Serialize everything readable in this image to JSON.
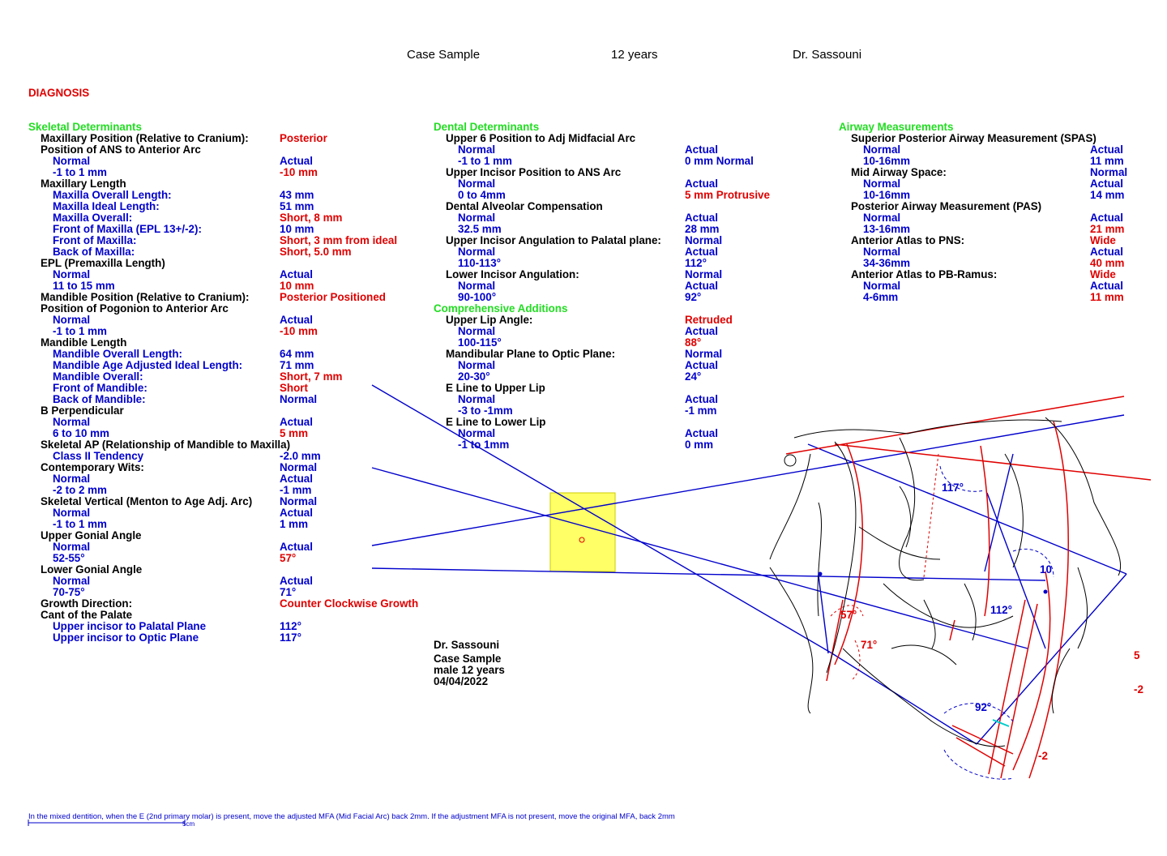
{
  "header": {
    "case": "Case Sample",
    "age": "12 years",
    "doctor": "Dr. Sassouni"
  },
  "diagnosis_label": "DIAGNOSIS",
  "sections": {
    "skeletal": "Skeletal Determinants",
    "dental": "Dental Determinants",
    "comprehensive": "Comprehensive Additions",
    "airway": "Airway Measurements"
  },
  "skeletal_lines": [
    {
      "c": "black",
      "i": 1,
      "label": "Maxillary Position (Relative to Cranium):",
      "v": "Posterior",
      "vc": "red"
    },
    {
      "c": "black",
      "i": 1,
      "label": "Position of ANS to Anterior Arc",
      "v": "",
      "vc": "blue"
    },
    {
      "c": "blue",
      "i": 2,
      "label": "Normal",
      "v": "Actual",
      "vc": "blue"
    },
    {
      "c": "blue",
      "i": 2,
      "label": "-1 to 1 mm",
      "v": "-10 mm",
      "vc": "red"
    },
    {
      "c": "black",
      "i": 1,
      "label": "Maxillary Length",
      "v": "",
      "vc": "blue"
    },
    {
      "c": "blue",
      "i": 2,
      "label": "Maxilla Overall Length:",
      "v": "43 mm",
      "vc": "blue"
    },
    {
      "c": "blue",
      "i": 2,
      "label": "Maxilla Ideal Length:",
      "v": "51 mm",
      "vc": "blue"
    },
    {
      "c": "blue",
      "i": 2,
      "label": "Maxilla Overall:",
      "v": "Short, 8 mm",
      "vc": "red"
    },
    {
      "c": "blue",
      "i": 2,
      "label": "Front of Maxilla (EPL 13+/-2):",
      "v": "10 mm",
      "vc": "blue"
    },
    {
      "c": "blue",
      "i": 2,
      "label": "Front of Maxilla:",
      "v": "Short, 3 mm from ideal",
      "vc": "red"
    },
    {
      "c": "blue",
      "i": 2,
      "label": "Back of Maxilla:",
      "v": "Short, 5.0 mm",
      "vc": "red"
    },
    {
      "c": "black",
      "i": 1,
      "label": "EPL (Premaxilla Length)",
      "v": "",
      "vc": "blue"
    },
    {
      "c": "blue",
      "i": 2,
      "label": "Normal",
      "v": "Actual",
      "vc": "blue"
    },
    {
      "c": "blue",
      "i": 2,
      "label": "11 to 15 mm",
      "v": "10 mm",
      "vc": "red"
    },
    {
      "c": "black",
      "i": 1,
      "label": "Mandible Position (Relative to Cranium):",
      "v": "Posterior Positioned",
      "vc": "red"
    },
    {
      "c": "black",
      "i": 1,
      "label": "Position of Pogonion to Anterior Arc",
      "v": "",
      "vc": "blue"
    },
    {
      "c": "blue",
      "i": 2,
      "label": "Normal",
      "v": "Actual",
      "vc": "blue"
    },
    {
      "c": "blue",
      "i": 2,
      "label": "-1 to 1 mm",
      "v": "-10 mm",
      "vc": "red"
    },
    {
      "c": "black",
      "i": 1,
      "label": "Mandible Length",
      "v": "",
      "vc": "blue"
    },
    {
      "c": "blue",
      "i": 2,
      "label": "Mandible Overall Length:",
      "v": "64 mm",
      "vc": "blue"
    },
    {
      "c": "blue",
      "i": 2,
      "label": "Mandible Age Adjusted Ideal Length:",
      "v": "71 mm",
      "vc": "blue"
    },
    {
      "c": "blue",
      "i": 2,
      "label": "Mandible Overall:",
      "v": "Short, 7 mm",
      "vc": "red"
    },
    {
      "c": "blue",
      "i": 2,
      "label": "Front of Mandible:",
      "v": "Short",
      "vc": "red"
    },
    {
      "c": "blue",
      "i": 2,
      "label": "Back of Mandible:",
      "v": "Normal",
      "vc": "blue"
    },
    {
      "c": "black",
      "i": 1,
      "label": "B Perpendicular",
      "v": "",
      "vc": "blue"
    },
    {
      "c": "blue",
      "i": 2,
      "label": "Normal",
      "v": "Actual",
      "vc": "blue"
    },
    {
      "c": "blue",
      "i": 2,
      "label": "6 to 10 mm",
      "v": "5 mm",
      "vc": "red"
    },
    {
      "c": "black",
      "i": 1,
      "label": "Skeletal AP (Relationship of Mandible to Maxilla)",
      "v": "",
      "vc": "blue"
    },
    {
      "c": "blue",
      "i": 2,
      "label": "Class II Tendency",
      "v": "-2.0 mm",
      "vc": "blue"
    },
    {
      "c": "black",
      "i": 1,
      "label": "Contemporary Wits:",
      "v": "Normal",
      "vc": "blue"
    },
    {
      "c": "blue",
      "i": 2,
      "label": "Normal",
      "v": "Actual",
      "vc": "blue"
    },
    {
      "c": "blue",
      "i": 2,
      "label": "-2 to 2 mm",
      "v": "-1 mm",
      "vc": "blue"
    },
    {
      "c": "black",
      "i": 1,
      "label": "Skeletal Vertical (Menton to Age Adj. Arc)",
      "v": "Normal",
      "vc": "blue"
    },
    {
      "c": "blue",
      "i": 2,
      "label": "Normal",
      "v": "Actual",
      "vc": "blue"
    },
    {
      "c": "blue",
      "i": 2,
      "label": "-1 to 1 mm",
      "v": "1 mm",
      "vc": "blue"
    },
    {
      "c": "black",
      "i": 1,
      "label": "Upper Gonial Angle",
      "v": "",
      "vc": "blue"
    },
    {
      "c": "blue",
      "i": 2,
      "label": "Normal",
      "v": "Actual",
      "vc": "blue"
    },
    {
      "c": "blue",
      "i": 2,
      "label": "52-55°",
      "v": "57°",
      "vc": "red"
    },
    {
      "c": "black",
      "i": 1,
      "label": "Lower Gonial Angle",
      "v": "",
      "vc": "blue"
    },
    {
      "c": "blue",
      "i": 2,
      "label": "Normal",
      "v": "Actual",
      "vc": "blue"
    },
    {
      "c": "blue",
      "i": 2,
      "label": "70-75°",
      "v": "71°",
      "vc": "blue"
    },
    {
      "c": "black",
      "i": 1,
      "label": "Growth Direction:",
      "v": "Counter Clockwise Growth",
      "vc": "red"
    },
    {
      "c": "black",
      "i": 1,
      "label": "Cant of the Palate",
      "v": "",
      "vc": "blue"
    },
    {
      "c": "blue",
      "i": 2,
      "label": "Upper incisor to Palatal Plane",
      "v": "112°",
      "vc": "blue"
    },
    {
      "c": "blue",
      "i": 2,
      "label": "Upper incisor to Optic Plane",
      "v": "117°",
      "vc": "blue"
    }
  ],
  "dental_lines": [
    {
      "c": "black",
      "i": 1,
      "label": "Upper 6 Position to Adj Midfacial Arc",
      "v": "",
      "vc": "blue"
    },
    {
      "c": "blue",
      "i": 2,
      "label": "Normal",
      "v": "Actual",
      "vc": "blue"
    },
    {
      "c": "blue",
      "i": 2,
      "label": "-1 to 1 mm",
      "v": "0 mm Normal",
      "vc": "blue"
    },
    {
      "c": "black",
      "i": 1,
      "label": "Upper Incisor Position to ANS Arc",
      "v": "",
      "vc": "blue"
    },
    {
      "c": "blue",
      "i": 2,
      "label": "Normal",
      "v": "Actual",
      "vc": "blue"
    },
    {
      "c": "blue",
      "i": 2,
      "label": "0 to 4mm",
      "v": "5 mm Protrusive",
      "vc": "red"
    },
    {
      "c": "black",
      "i": 1,
      "label": "Dental Alveolar Compensation",
      "v": "",
      "vc": "blue"
    },
    {
      "c": "blue",
      "i": 2,
      "label": "Normal",
      "v": "Actual",
      "vc": "blue"
    },
    {
      "c": "blue",
      "i": 2,
      "label": "32.5 mm",
      "v": "28 mm",
      "vc": "blue"
    },
    {
      "c": "black",
      "i": 1,
      "label": "Upper Incisor Angulation to Palatal plane:",
      "v": "Normal",
      "vc": "blue"
    },
    {
      "c": "blue",
      "i": 2,
      "label": "Normal",
      "v": "Actual",
      "vc": "blue"
    },
    {
      "c": "blue",
      "i": 2,
      "label": "110-113°",
      "v": "112°",
      "vc": "blue"
    },
    {
      "c": "black",
      "i": 1,
      "label": "Lower Incisor Angulation:",
      "v": "Normal",
      "vc": "blue"
    },
    {
      "c": "blue",
      "i": 2,
      "label": "Normal",
      "v": "Actual",
      "vc": "blue"
    },
    {
      "c": "blue",
      "i": 2,
      "label": "90-100°",
      "v": "92°",
      "vc": "blue"
    }
  ],
  "comprehensive_lines": [
    {
      "c": "black",
      "i": 1,
      "label": "Upper Lip Angle:",
      "v": "Retruded",
      "vc": "red"
    },
    {
      "c": "blue",
      "i": 2,
      "label": "Normal",
      "v": "Actual",
      "vc": "blue"
    },
    {
      "c": "blue",
      "i": 2,
      "label": "100-115°",
      "v": "88°",
      "vc": "red"
    },
    {
      "c": "black",
      "i": 1,
      "label": "Mandibular Plane to Optic Plane:",
      "v": "Normal",
      "vc": "blue"
    },
    {
      "c": "blue",
      "i": 2,
      "label": "Normal",
      "v": "Actual",
      "vc": "blue"
    },
    {
      "c": "blue",
      "i": 2,
      "label": "20-30°",
      "v": "24°",
      "vc": "blue"
    },
    {
      "c": "black",
      "i": 1,
      "label": "E Line to Upper Lip",
      "v": "",
      "vc": "blue"
    },
    {
      "c": "blue",
      "i": 2,
      "label": "Normal",
      "v": "Actual",
      "vc": "blue"
    },
    {
      "c": "blue",
      "i": 2,
      "label": "-3 to -1mm",
      "v": "-1 mm",
      "vc": "blue"
    },
    {
      "c": "black",
      "i": 1,
      "label": "E Line to Lower Lip",
      "v": "",
      "vc": "blue"
    },
    {
      "c": "blue",
      "i": 2,
      "label": "Normal",
      "v": "Actual",
      "vc": "blue"
    },
    {
      "c": "blue",
      "i": 2,
      "label": "-1 to 1mm",
      "v": "0 mm",
      "vc": "blue"
    }
  ],
  "airway_lines": [
    {
      "c": "black",
      "i": 1,
      "label": "Superior Posterior Airway Measurement (SPAS)",
      "v": "",
      "vc": "blue"
    },
    {
      "c": "blue",
      "i": 2,
      "label": "Normal",
      "v": "Actual",
      "vc": "blue"
    },
    {
      "c": "blue",
      "i": 2,
      "label": "10-16mm",
      "v": "11 mm",
      "vc": "blue"
    },
    {
      "c": "black",
      "i": 1,
      "label": "Mid Airway Space:",
      "v": "Normal",
      "vc": "blue"
    },
    {
      "c": "blue",
      "i": 2,
      "label": "Normal",
      "v": "Actual",
      "vc": "blue"
    },
    {
      "c": "blue",
      "i": 2,
      "label": "10-16mm",
      "v": "14 mm",
      "vc": "blue"
    },
    {
      "c": "black",
      "i": 1,
      "label": "Posterior Airway Measurement (PAS)",
      "v": "",
      "vc": "blue"
    },
    {
      "c": "blue",
      "i": 2,
      "label": "Normal",
      "v": "Actual",
      "vc": "blue"
    },
    {
      "c": "blue",
      "i": 2,
      "label": "13-16mm",
      "v": "21 mm",
      "vc": "red"
    },
    {
      "c": "black",
      "i": 1,
      "label": "Anterior Atlas to PNS:",
      "v": "Wide",
      "vc": "red"
    },
    {
      "c": "blue",
      "i": 2,
      "label": "Normal",
      "v": "Actual",
      "vc": "blue"
    },
    {
      "c": "blue",
      "i": 2,
      "label": "34-36mm",
      "v": "40 mm",
      "vc": "red"
    },
    {
      "c": "black",
      "i": 1,
      "label": "Anterior Atlas to PB-Ramus:",
      "v": "Wide",
      "vc": "red"
    },
    {
      "c": "blue",
      "i": 2,
      "label": "Normal",
      "v": "Actual",
      "vc": "blue"
    },
    {
      "c": "blue",
      "i": 2,
      "label": "4-6mm",
      "v": "11 mm",
      "vc": "red"
    }
  ],
  "patient_info": {
    "doctor": "Dr. Sassouni",
    "case": "Case Sample",
    "gender_age": "male  12 years",
    "date": "04/04/2022"
  },
  "tracing_labels": {
    "a117": "117°",
    "a112": "112°",
    "a92": "92°",
    "a57": "57°",
    "a71": "71°",
    "v10": "10",
    "v5": "5",
    "vm2a": "-2",
    "vm2b": "-2"
  },
  "footer_note": "In the mixed dentition, when the E (2nd primary molar) is present, move the adjusted MFA (Mid Facial Arc) back 2mm. If the adjustment MFA is not present, move the original MFA, back 2mm",
  "scale_label": "5cm",
  "colors": {
    "label_black": "#000000",
    "value_blue": "#0000cc",
    "alert_red": "#e00000",
    "section_green": "#22dd22",
    "highlight_yellow": "#ffff66"
  }
}
